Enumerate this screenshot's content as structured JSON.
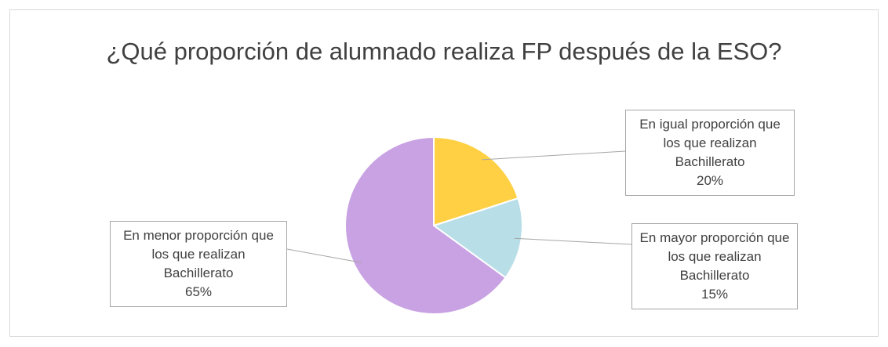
{
  "chart_data": {
    "type": "pie",
    "title": "¿Qué proporción de alumnado realiza FP después de la ESO?",
    "categories": [
      "En igual proporción que los que realizan Bachillerato",
      "En mayor proporción que los que realizan Bachillerato",
      "En menor proporción que los que realizan Bachillerato"
    ],
    "values": [
      20,
      15,
      65
    ],
    "value_labels": [
      "20%",
      "15%",
      "65%"
    ],
    "colors": [
      "#ffd043",
      "#b8dee8",
      "#c8a2e3"
    ]
  }
}
